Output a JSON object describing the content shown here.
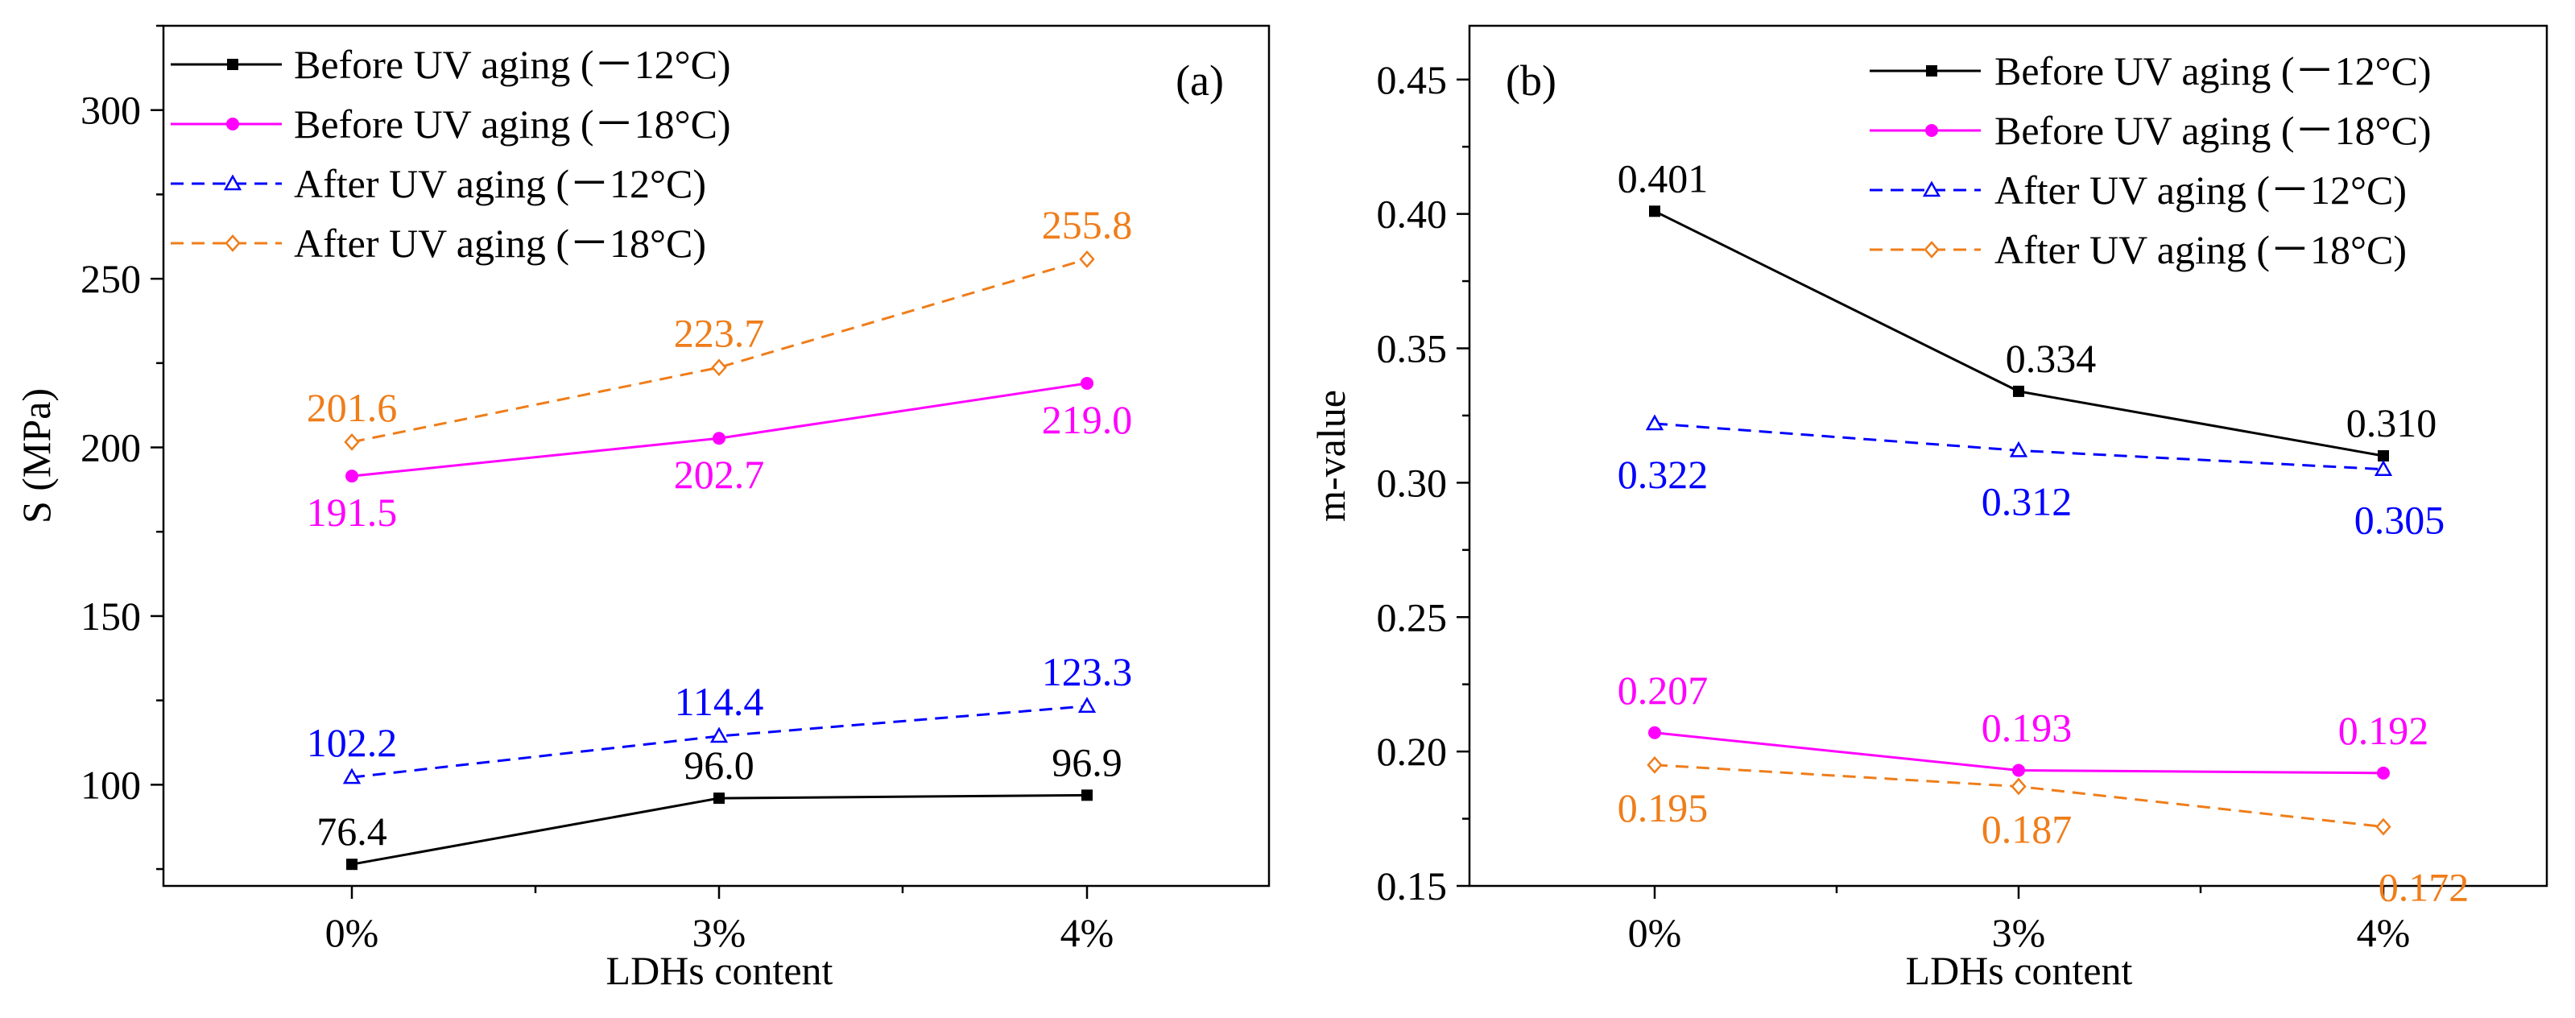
{
  "colors": {
    "series": [
      "#000000",
      "#ff00ff",
      "#0000ff",
      "#ef7d1a"
    ],
    "axis": "#000000",
    "background": "#ffffff"
  },
  "chart_data": [
    {
      "type": "line",
      "panel_label": "(a)",
      "title": "",
      "xlabel": "LDHs content",
      "ylabel": "S (MPa)",
      "categories": [
        "0%",
        "3%",
        "4%"
      ],
      "ylim": [
        70,
        325
      ],
      "yticks": [
        100,
        150,
        200,
        250,
        300
      ],
      "ytick_labels": [
        "100",
        "150",
        "200",
        "250",
        "300"
      ],
      "grid": false,
      "legend_position": "top-left",
      "series": [
        {
          "name": "Before UV aging (－12°C)",
          "values": [
            76.4,
            96.0,
            96.9
          ],
          "labels": [
            "76.4",
            "96.0",
            "96.9"
          ],
          "color": "#000000",
          "dash": "solid",
          "marker": "square"
        },
        {
          "name": "Before UV aging (－18°C)",
          "values": [
            191.5,
            202.7,
            219.0
          ],
          "labels": [
            "191.5",
            "202.7",
            "219.0"
          ],
          "color": "#ff00ff",
          "dash": "solid",
          "marker": "circle"
        },
        {
          "name": "After UV aging (－12°C)",
          "values": [
            102.2,
            114.4,
            123.3
          ],
          "labels": [
            "102.2",
            "114.4",
            "123.3"
          ],
          "color": "#0000ff",
          "dash": "dashed",
          "marker": "triangle-open"
        },
        {
          "name": "After UV aging (－18°C)",
          "values": [
            201.6,
            223.7,
            255.8
          ],
          "labels": [
            "201.6",
            "223.7",
            "255.8"
          ],
          "color": "#ef7d1a",
          "dash": "dashed",
          "marker": "diamond-open"
        }
      ]
    },
    {
      "type": "line",
      "panel_label": "(b)",
      "title": "",
      "xlabel": "LDHs content",
      "ylabel": "m-value",
      "categories": [
        "0%",
        "3%",
        "4%"
      ],
      "ylim": [
        0.15,
        0.47
      ],
      "yticks": [
        0.15,
        0.2,
        0.25,
        0.3,
        0.35,
        0.4,
        0.45
      ],
      "ytick_labels": [
        "0.15",
        "0.20",
        "0.25",
        "0.30",
        "0.35",
        "0.40",
        "0.45"
      ],
      "grid": false,
      "legend_position": "top-right",
      "series": [
        {
          "name": "Before UV aging (－12°C)",
          "values": [
            0.401,
            0.334,
            0.31
          ],
          "labels": [
            "0.401",
            "0.334",
            "0.310"
          ],
          "color": "#000000",
          "dash": "solid",
          "marker": "square"
        },
        {
          "name": "Before UV aging (－18°C)",
          "values": [
            0.207,
            0.193,
            0.192
          ],
          "labels": [
            "0.207",
            "0.193",
            "0.192"
          ],
          "color": "#ff00ff",
          "dash": "solid",
          "marker": "circle"
        },
        {
          "name": "After UV aging (－12°C)",
          "values": [
            0.322,
            0.312,
            0.305
          ],
          "labels": [
            "0.322",
            "0.312",
            "0.305"
          ],
          "color": "#0000ff",
          "dash": "dashed",
          "marker": "triangle-open"
        },
        {
          "name": "After UV aging (－18°C)",
          "values": [
            0.195,
            0.187,
            0.172
          ],
          "labels": [
            "0.195",
            "0.187",
            "0.172"
          ],
          "color": "#ef7d1a",
          "dash": "dashed",
          "marker": "diamond-open"
        }
      ]
    }
  ]
}
